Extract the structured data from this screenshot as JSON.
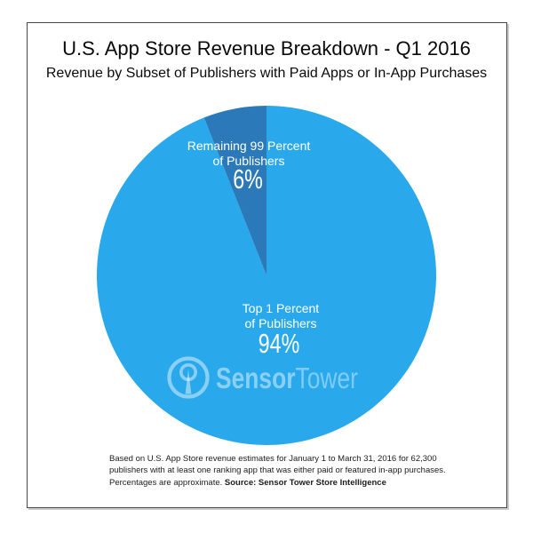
{
  "header": {
    "title": "U.S. App Store Revenue Breakdown - Q1 2016",
    "subtitle": "Revenue by Subset of Publishers with Paid Apps or In-App Purchases",
    "text_color": "#0a0a0a"
  },
  "chart_data": {
    "type": "pie",
    "title": "U.S. App Store Revenue Breakdown - Q1 2016",
    "subtitle": "Revenue by Subset of Publishers with Paid Apps or In-App Purchases",
    "unit": "percent of revenue",
    "start_angle_deg": 0,
    "direction": "clockwise",
    "legend": "none",
    "labels_inside": true,
    "label_color": "#FFFFFF",
    "slices": [
      {
        "name": "Top 1 Percent of Publishers",
        "value": 94,
        "value_label": "94%",
        "label_line1": "Top 1 Percent",
        "label_line2": "of Publishers",
        "color": "#29A9EC"
      },
      {
        "name": "Remaining 99 Percent of Publishers",
        "value": 6,
        "value_label": "6%",
        "label_line1": "Remaining 99 Percent",
        "label_line2": "of Publishers",
        "color": "#2B79B8"
      }
    ]
  },
  "watermark": {
    "icon": "sensor-tower-radio-tower-icon",
    "brand_bold": "Sensor",
    "brand_light": "Tower",
    "color": "rgba(255,255,255,0.45)"
  },
  "footnote": {
    "line1": "Based on U.S. App Store revenue estimates for January 1 to March 31, 2016 for 62,300",
    "line2": "publishers with at least one ranking app that was either paid or featured in-app purchases.",
    "line3_regular": "Percentages are approximate. ",
    "line3_bold": "Source: Sensor Tower Store Intelligence"
  }
}
